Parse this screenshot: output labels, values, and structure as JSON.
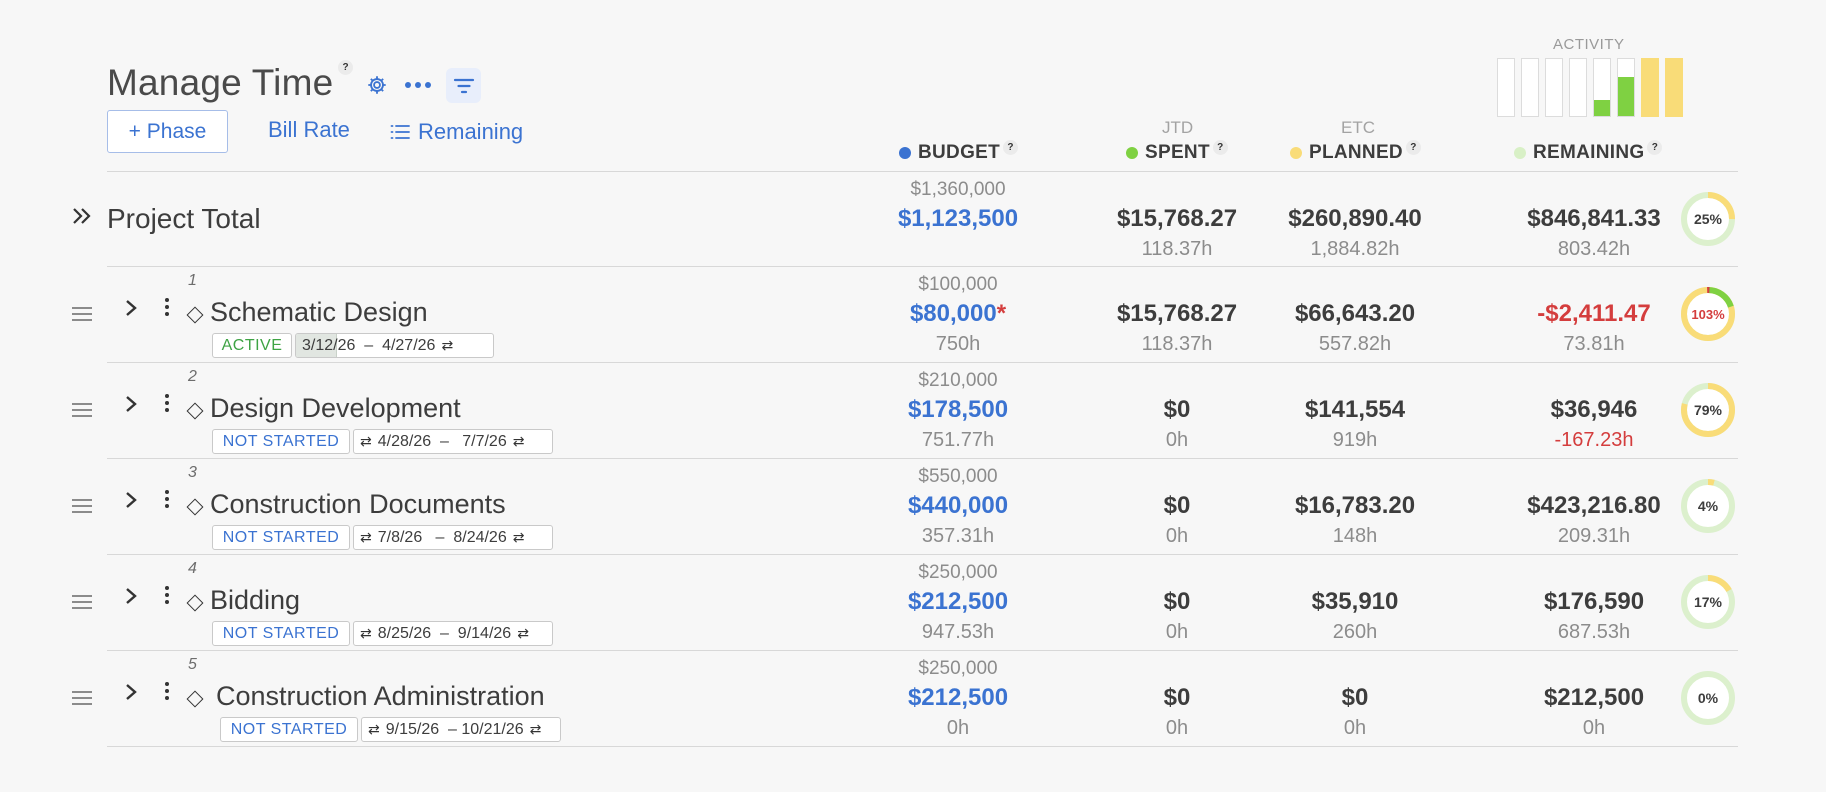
{
  "header": {
    "title": "Manage Time",
    "title_help": "?",
    "phase_button": "+ Phase",
    "bill_rate": "Bill Rate",
    "remaining_button": "Remaining"
  },
  "activity": {
    "label": "ACTIVITY",
    "bars": [
      {
        "level": 0,
        "color": "#7fd142"
      },
      {
        "level": 0,
        "color": "#7fd142"
      },
      {
        "level": 0,
        "color": "#7fd142"
      },
      {
        "level": 0,
        "color": "#7fd142"
      },
      {
        "level": 0.28,
        "color": "#7fd142"
      },
      {
        "level": 0.68,
        "color": "#7fd142"
      },
      {
        "level": 1.0,
        "color": "#f9dc78"
      },
      {
        "level": 1.0,
        "color": "#f9dc78"
      }
    ]
  },
  "columns": {
    "budget": {
      "label": "BUDGET",
      "help": "?",
      "color": "#3b73d1"
    },
    "spent": {
      "label": "SPENT",
      "sub": "JTD",
      "help": "?",
      "color": "#7fd142"
    },
    "planned": {
      "label": "PLANNED",
      "sub": "ETC",
      "help": "?",
      "color": "#f9dc78"
    },
    "remaining": {
      "label": "REMAINING",
      "help": "?",
      "color": "#d8f0c6"
    }
  },
  "total": {
    "label": "Project Total",
    "budget_top": "$1,360,000",
    "budget": "$1,123,500",
    "spent": "$15,768.27",
    "spent_hours": "118.37h",
    "planned": "$260,890.40",
    "planned_hours": "1,884.82h",
    "remaining": "$846,841.33",
    "remaining_hours": "803.42h",
    "percent": "25%",
    "percent_value": 25
  },
  "phases": [
    {
      "num": "1",
      "name": "Schematic Design",
      "status": "ACTIVE",
      "status_class": "active",
      "dates": "3/12/26  –  4/27/26",
      "progress": 0.21,
      "budget_top": "$100,000",
      "budget": "$80,000",
      "budget_flag": "*",
      "budget_hours": "750h",
      "spent": "$15,768.27",
      "spent_hours": "118.37h",
      "planned": "$66,643.20",
      "planned_hours": "557.82h",
      "remaining": "-$2,411.47",
      "remaining_red": true,
      "remaining_hours": "73.81h",
      "remaining_hours_red": false,
      "percent": "103%",
      "percent_value": 103
    },
    {
      "num": "2",
      "name": "Design Development",
      "status": "NOT STARTED",
      "status_class": "notstarted",
      "dates": "4/28/26  –   7/7/26",
      "progress": 0,
      "budget_top": "$210,000",
      "budget": "$178,500",
      "budget_flag": "",
      "budget_hours": "751.77h",
      "spent": "$0",
      "spent_hours": "0h",
      "planned": "$141,554",
      "planned_hours": "919h",
      "remaining": "$36,946",
      "remaining_red": false,
      "remaining_hours": "-167.23h",
      "remaining_hours_red": true,
      "percent": "79%",
      "percent_value": 79
    },
    {
      "num": "3",
      "name": "Construction Documents",
      "status": "NOT STARTED",
      "status_class": "notstarted",
      "dates": "7/8/26   –  8/24/26",
      "progress": 0,
      "budget_top": "$550,000",
      "budget": "$440,000",
      "budget_flag": "",
      "budget_hours": "357.31h",
      "spent": "$0",
      "spent_hours": "0h",
      "planned": "$16,783.20",
      "planned_hours": "148h",
      "remaining": "$423,216.80",
      "remaining_red": false,
      "remaining_hours": "209.31h",
      "remaining_hours_red": false,
      "percent": "4%",
      "percent_value": 4
    },
    {
      "num": "4",
      "name": "Bidding",
      "status": "NOT STARTED",
      "status_class": "notstarted",
      "dates": "8/25/26  –  9/14/26",
      "progress": 0,
      "budget_top": "$250,000",
      "budget": "$212,500",
      "budget_flag": "",
      "budget_hours": "947.53h",
      "spent": "$0",
      "spent_hours": "0h",
      "planned": "$35,910",
      "planned_hours": "260h",
      "remaining": "$176,590",
      "remaining_red": false,
      "remaining_hours": "687.53h",
      "remaining_hours_red": false,
      "percent": "17%",
      "percent_value": 17
    },
    {
      "num": "5",
      "name": "Construction Administration",
      "status": "NOT STARTED",
      "status_class": "notstarted",
      "dates": "9/15/26  – 10/21/26",
      "progress": 0,
      "budget_top": "$250,000",
      "budget": "$212,500",
      "budget_flag": "",
      "budget_hours": "0h",
      "spent": "$0",
      "spent_hours": "0h",
      "planned": "$0",
      "planned_hours": "0h",
      "remaining": "$212,500",
      "remaining_red": false,
      "remaining_hours": "0h",
      "remaining_hours_red": false,
      "percent": "0%",
      "percent_value": 0
    }
  ],
  "icons": {
    "gear": "gear-icon",
    "more": "more-horizontal-icon",
    "filter": "filter-icon",
    "list": "list-icon",
    "expand_all": "double-chevron-right-icon",
    "drag": "drag-handle-icon",
    "expand": "chevron-right-icon",
    "kebab": "kebab-icon",
    "milestone": "diamond-icon",
    "swap": "swap-icon"
  }
}
